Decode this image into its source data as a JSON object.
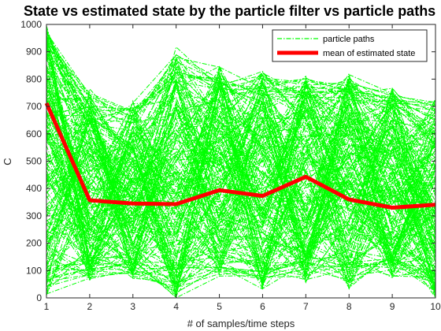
{
  "chart_data": {
    "type": "line",
    "title": "State vs estimated state by the particle filter vs particle paths",
    "xlabel": "# of samples/time steps",
    "ylabel": "C",
    "xlim": [
      1,
      10
    ],
    "ylim": [
      0,
      1000
    ],
    "x_ticks": [
      "1",
      "2",
      "3",
      "4",
      "5",
      "6",
      "7",
      "8",
      "9",
      "10"
    ],
    "y_ticks": [
      "0",
      "100",
      "200",
      "300",
      "400",
      "500",
      "600",
      "700",
      "800",
      "900",
      "1000"
    ],
    "grid": false,
    "legend_position": "top-right",
    "x": [
      1,
      2,
      3,
      4,
      5,
      6,
      7,
      8,
      9,
      10
    ],
    "series": [
      {
        "name": "particle paths",
        "style": "dash-dot",
        "color": "#00ff00",
        "band_upper": [
          1000,
          770,
          720,
          920,
          860,
          830,
          820,
          820,
          770,
          730
        ],
        "band_lower": [
          10,
          60,
          70,
          0,
          70,
          30,
          50,
          30,
          70,
          0
        ]
      },
      {
        "name": "mean of estimated state",
        "style": "solid",
        "color": "#ff0000",
        "values": [
          712,
          357,
          345,
          343,
          394,
          373,
          443,
          360,
          330,
          341
        ]
      }
    ]
  }
}
